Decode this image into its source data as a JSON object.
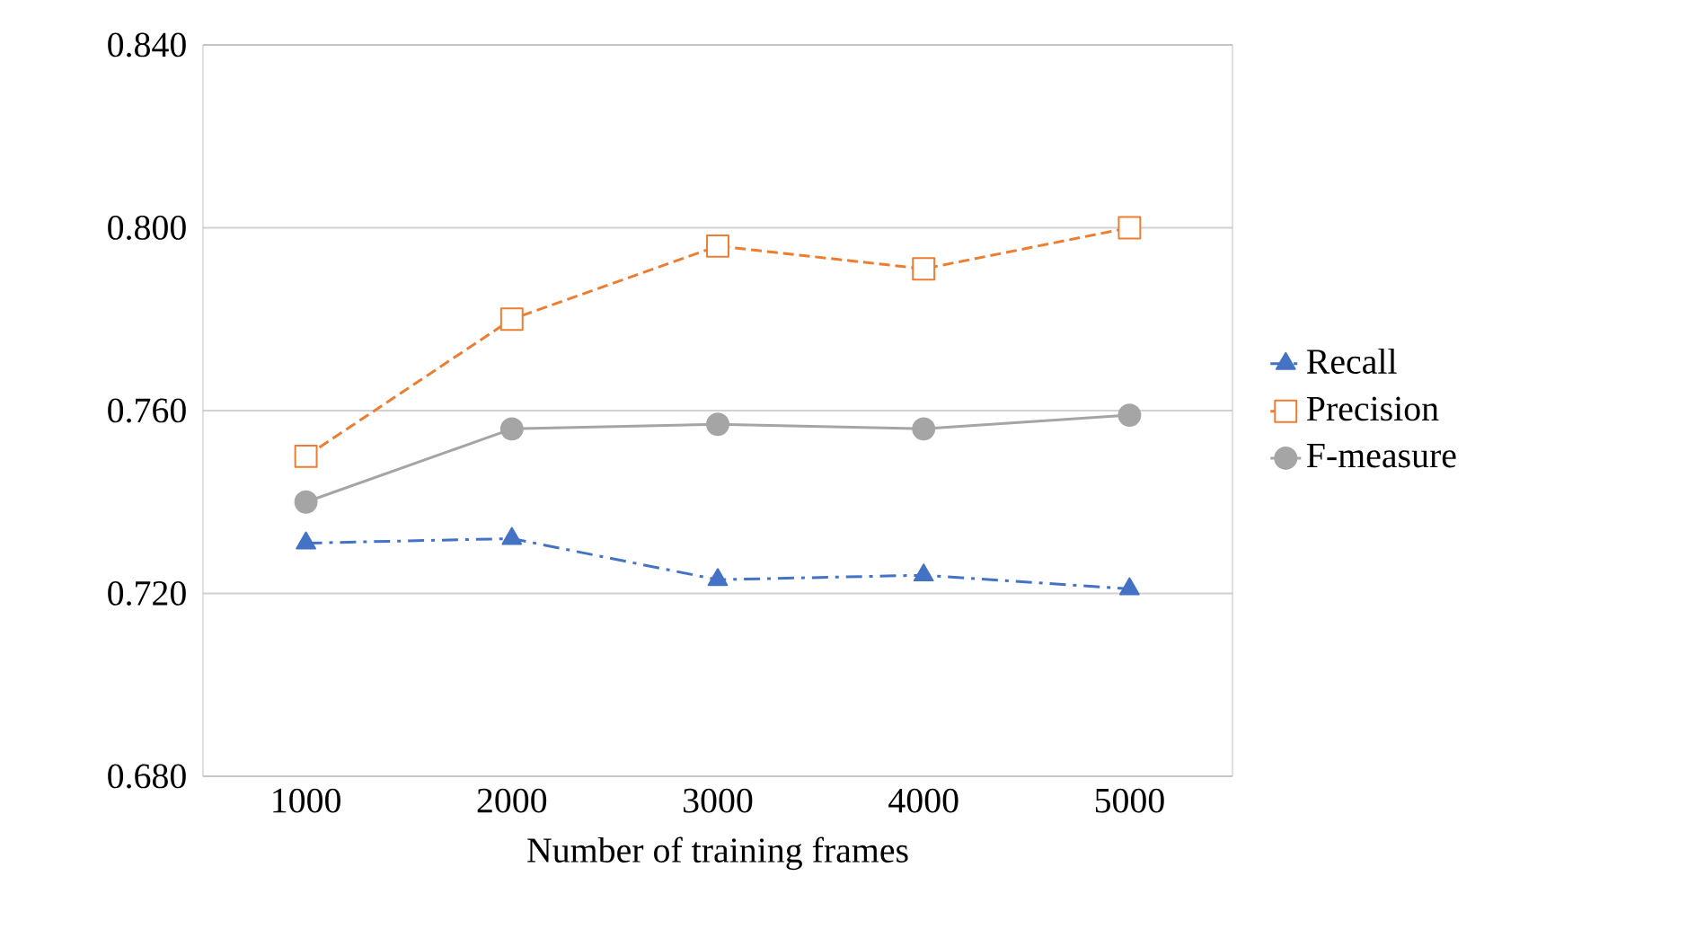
{
  "chart_data": {
    "type": "line",
    "xlabel": "Number of training frames",
    "categories": [
      "1000",
      "2000",
      "3000",
      "4000",
      "5000"
    ],
    "series": [
      {
        "name": "Recall",
        "color": "#4472c4",
        "marker": "triangle",
        "line_style": "dashed",
        "values": [
          0.731,
          0.732,
          0.723,
          0.724,
          0.721
        ]
      },
      {
        "name": "Precision",
        "color": "#ed7d31",
        "marker": "square",
        "line_style": "dotted",
        "values": [
          0.75,
          0.78,
          0.796,
          0.791,
          0.8
        ]
      },
      {
        "name": "F-measure",
        "color": "#a5a5a5",
        "marker": "circle",
        "line_style": "solid",
        "values": [
          0.74,
          0.756,
          0.757,
          0.756,
          0.759
        ]
      }
    ],
    "ylim": [
      0.68,
      0.84
    ],
    "yticks": [
      {
        "value": 0.68,
        "label": "0.680"
      },
      {
        "value": 0.72,
        "label": "0.720"
      },
      {
        "value": 0.76,
        "label": "0.760"
      },
      {
        "value": 0.8,
        "label": "0.800"
      },
      {
        "value": 0.84,
        "label": "0.840"
      }
    ],
    "grid": "y",
    "legend": "right"
  }
}
